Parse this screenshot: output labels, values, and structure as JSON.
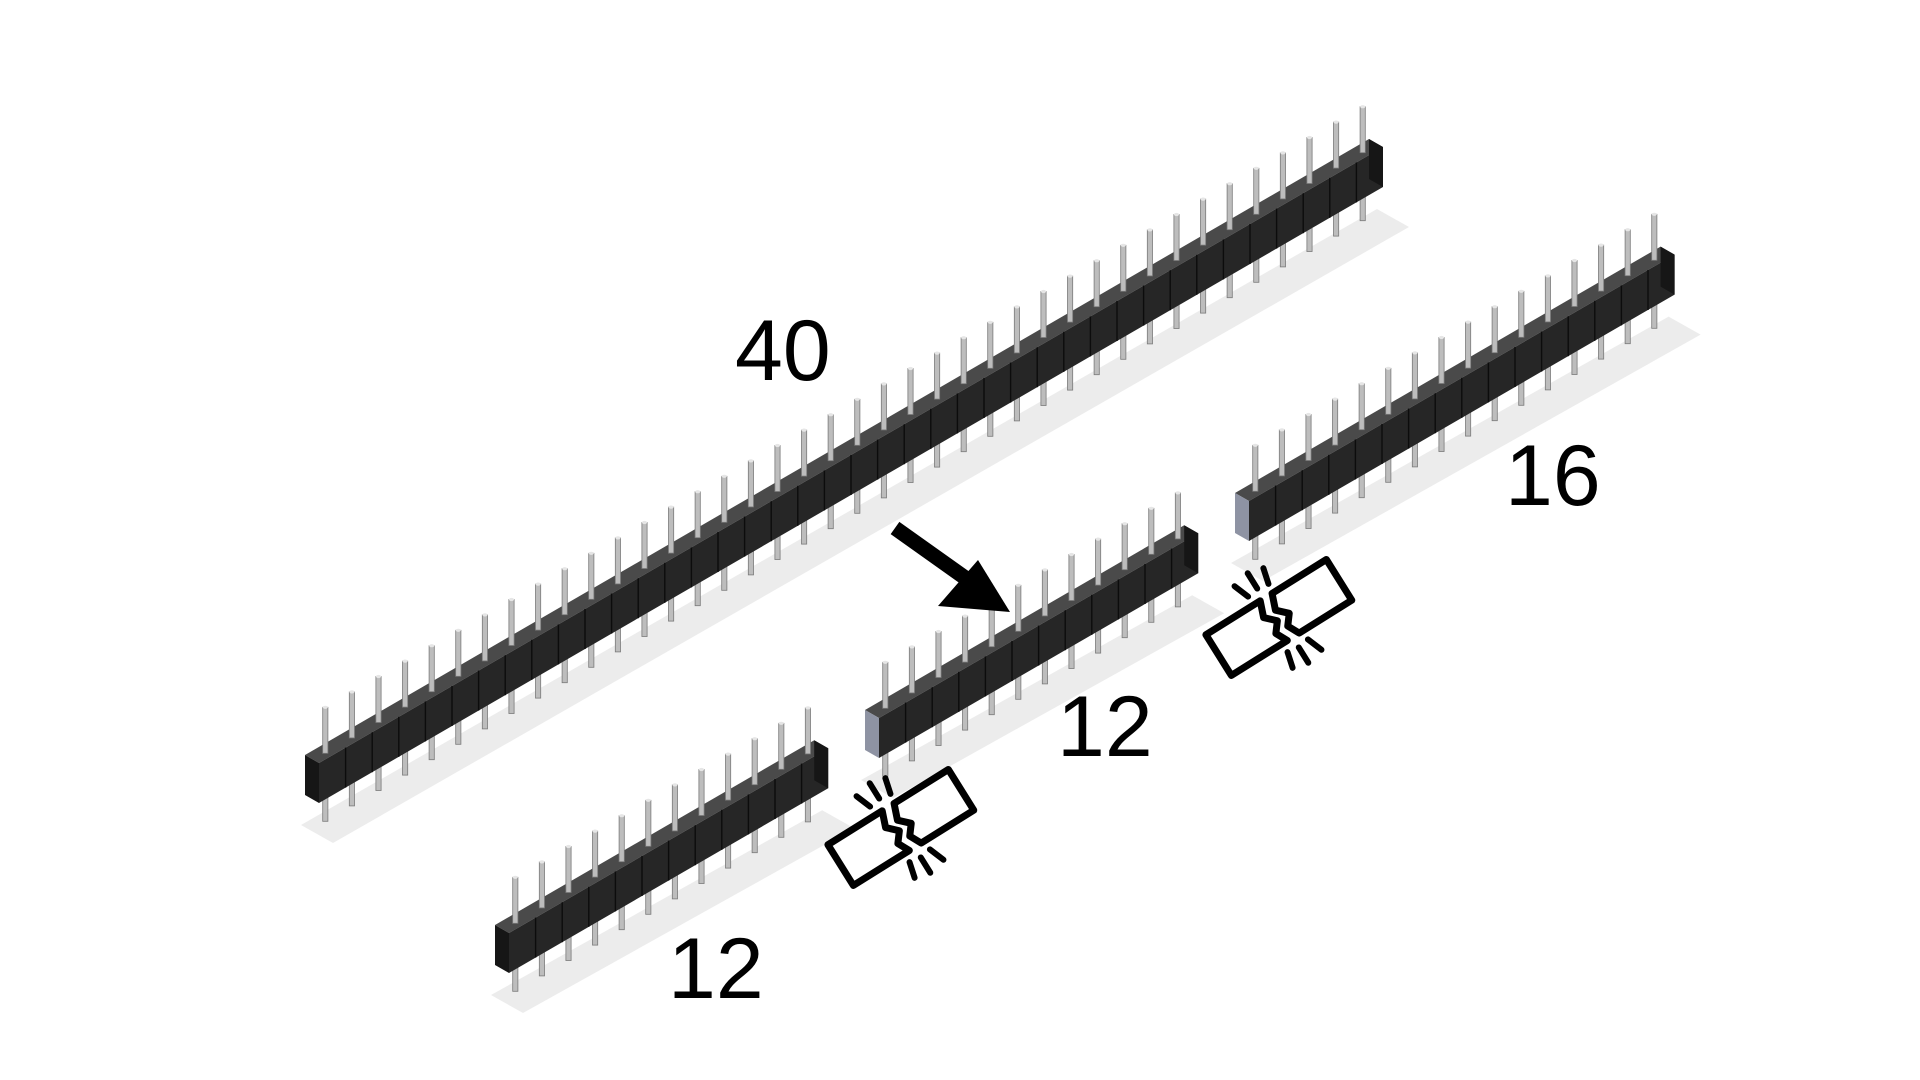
{
  "diagram": {
    "strips": [
      {
        "id": "full-strip",
        "pins": 40,
        "label": "40",
        "break_left_end": false
      },
      {
        "id": "piece-a",
        "pins": 12,
        "label": "12",
        "break_left_end": false
      },
      {
        "id": "piece-b",
        "pins": 12,
        "label": "12",
        "break_left_end": true
      },
      {
        "id": "piece-c",
        "pins": 16,
        "label": "16",
        "break_left_end": true
      }
    ],
    "break_icon_count": 2,
    "arrow_icon": "arrow-down-right-icon",
    "break_icon": "snap-break-icon",
    "colors": {
      "body_top": "#4a4a4a",
      "body_front": "#262626",
      "body_side": "#161616",
      "pin": "#bdbdbd",
      "pin_highlight": "#e6e6e6",
      "pin_shadow": "#7a7a7a",
      "broken_face": "#8e93a3",
      "shadow": "#dcdcdc",
      "icon_stroke": "#000000"
    }
  }
}
